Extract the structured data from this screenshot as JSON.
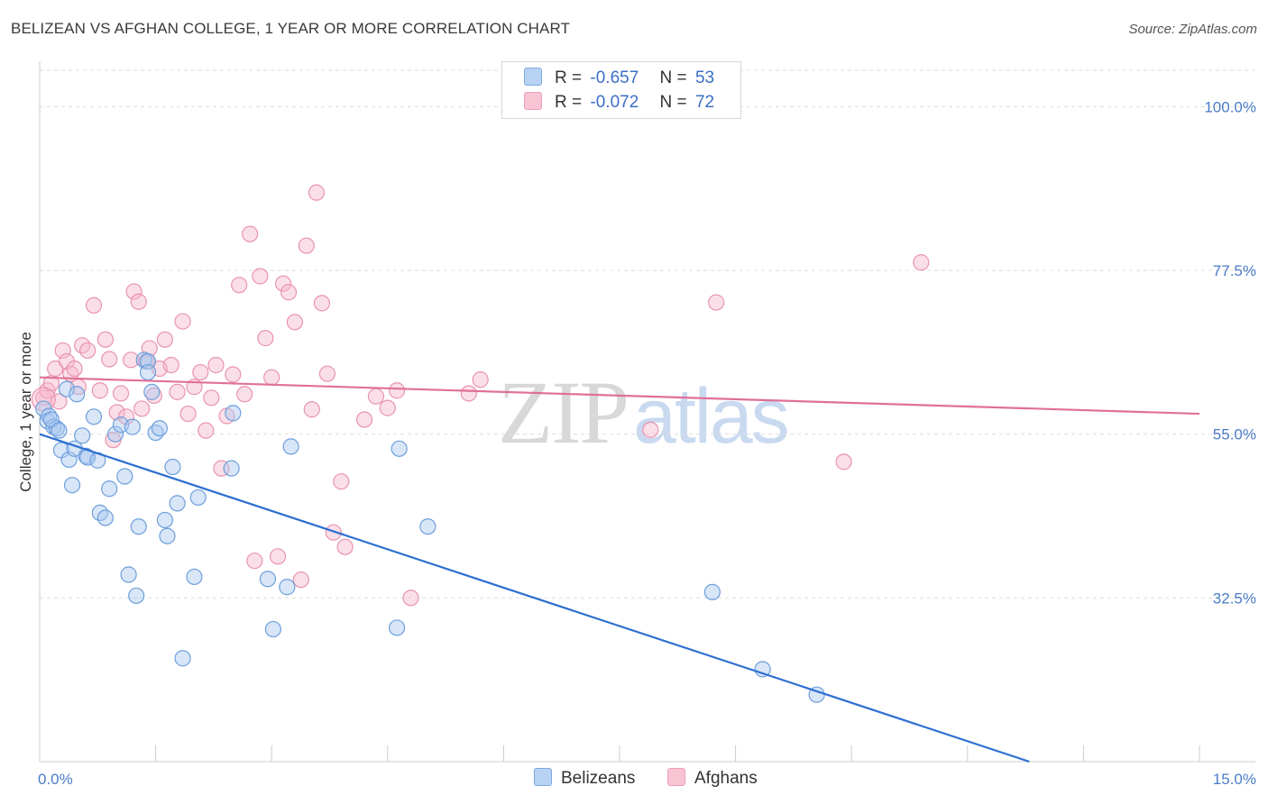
{
  "header": {
    "title": "BELIZEAN VS AFGHAN COLLEGE, 1 YEAR OR MORE CORRELATION CHART",
    "source": "Source: ZipAtlas.com"
  },
  "watermark": {
    "zip": "ZIP",
    "atlas": "atlas"
  },
  "legend_top": {
    "rows": [
      {
        "r_label": "R =",
        "r_value": "-0.657",
        "n_label": "N =",
        "n_value": "53"
      },
      {
        "r_label": "R =",
        "r_value": "-0.072",
        "n_label": "N =",
        "n_value": "72"
      }
    ]
  },
  "legend_bottom": {
    "items": [
      "Belizeans",
      "Afghans"
    ]
  },
  "colors": {
    "belizean_fill": "#a9c8f0",
    "belizean_stroke": "#6e9fdc",
    "belizean_line": "#2e6fd1",
    "afghan_fill": "#f6b8cb",
    "afghan_stroke": "#e894ad",
    "afghan_line": "#e07098",
    "grid": "#dddddd",
    "tick_text": "#4a7cc7"
  },
  "chart_data": {
    "type": "scatter",
    "title": "BELIZEAN VS AFGHAN COLLEGE, 1 YEAR OR MORE CORRELATION CHART",
    "ylabel": "College, 1 year or more",
    "xlim": [
      0,
      15
    ],
    "ylim": [
      10,
      105
    ],
    "x_tick_labels": [
      "0.0%",
      "15.0%"
    ],
    "y_ticks": [
      32.5,
      55.0,
      77.5,
      100.0
    ],
    "y_tick_labels": [
      "32.5%",
      "55.0%",
      "77.5%",
      "100.0%"
    ],
    "grid": true,
    "legend_position": "top-center",
    "series": [
      {
        "name": "Belizeans",
        "R": -0.657,
        "N": 53,
        "trend": {
          "x": [
            0.0,
            12.8
          ],
          "y": [
            55.0,
            10.0
          ]
        },
        "points": [
          [
            0.05,
            58.5
          ],
          [
            0.1,
            56.8
          ],
          [
            0.12,
            57.5
          ],
          [
            0.18,
            56.0
          ],
          [
            0.22,
            55.8
          ],
          [
            0.28,
            52.8
          ],
          [
            0.35,
            61.2
          ],
          [
            0.38,
            51.5
          ],
          [
            0.42,
            48.0
          ],
          [
            0.48,
            60.5
          ],
          [
            0.55,
            54.8
          ],
          [
            0.6,
            52.0
          ],
          [
            0.62,
            51.8
          ],
          [
            0.7,
            57.4
          ],
          [
            0.75,
            51.4
          ],
          [
            0.78,
            44.2
          ],
          [
            0.85,
            43.5
          ],
          [
            0.9,
            47.5
          ],
          [
            0.98,
            55.0
          ],
          [
            1.05,
            56.3
          ],
          [
            1.1,
            49.2
          ],
          [
            1.15,
            35.7
          ],
          [
            1.2,
            56.0
          ],
          [
            1.25,
            32.8
          ],
          [
            1.28,
            42.3
          ],
          [
            1.35,
            65.2
          ],
          [
            1.4,
            65.0
          ],
          [
            1.45,
            60.8
          ],
          [
            1.5,
            55.2
          ],
          [
            1.55,
            55.8
          ],
          [
            1.62,
            43.2
          ],
          [
            1.65,
            41.0
          ],
          [
            1.72,
            50.5
          ],
          [
            1.78,
            45.5
          ],
          [
            1.85,
            24.2
          ],
          [
            2.0,
            35.4
          ],
          [
            2.05,
            46.3
          ],
          [
            2.48,
            50.3
          ],
          [
            2.5,
            57.9
          ],
          [
            2.95,
            35.1
          ],
          [
            3.02,
            28.2
          ],
          [
            3.2,
            34.0
          ],
          [
            3.25,
            53.3
          ],
          [
            4.62,
            28.4
          ],
          [
            4.65,
            53.0
          ],
          [
            5.02,
            42.3
          ],
          [
            8.7,
            33.3
          ],
          [
            9.35,
            22.7
          ],
          [
            10.05,
            19.2
          ],
          [
            0.15,
            57.0
          ],
          [
            0.25,
            55.5
          ],
          [
            1.4,
            63.5
          ],
          [
            0.45,
            53.0
          ]
        ]
      },
      {
        "name": "Afghans",
        "R": -0.072,
        "N": 72,
        "trend": {
          "x": [
            0.0,
            15.0
          ],
          "y": [
            62.8,
            57.8
          ]
        },
        "points": [
          [
            0.05,
            60.0
          ],
          [
            0.1,
            61.0
          ],
          [
            0.15,
            62.0
          ],
          [
            0.2,
            64.0
          ],
          [
            0.25,
            59.5
          ],
          [
            0.3,
            66.5
          ],
          [
            0.35,
            65.0
          ],
          [
            0.4,
            63.3
          ],
          [
            0.45,
            64.0
          ],
          [
            0.5,
            61.5
          ],
          [
            0.55,
            67.2
          ],
          [
            0.62,
            66.5
          ],
          [
            0.7,
            72.7
          ],
          [
            0.78,
            61.0
          ],
          [
            0.85,
            68.0
          ],
          [
            0.9,
            65.3
          ],
          [
            0.95,
            54.2
          ],
          [
            1.0,
            58.0
          ],
          [
            1.05,
            60.6
          ],
          [
            1.12,
            57.4
          ],
          [
            1.18,
            65.2
          ],
          [
            1.22,
            74.6
          ],
          [
            1.28,
            73.2
          ],
          [
            1.32,
            58.5
          ],
          [
            1.38,
            65.0
          ],
          [
            1.42,
            66.8
          ],
          [
            1.48,
            60.3
          ],
          [
            1.55,
            64.0
          ],
          [
            1.62,
            68.0
          ],
          [
            1.7,
            64.5
          ],
          [
            1.78,
            60.8
          ],
          [
            1.85,
            70.5
          ],
          [
            1.92,
            57.8
          ],
          [
            2.0,
            61.5
          ],
          [
            2.08,
            63.5
          ],
          [
            2.15,
            55.5
          ],
          [
            2.22,
            60.0
          ],
          [
            2.28,
            64.5
          ],
          [
            2.35,
            50.3
          ],
          [
            2.42,
            57.5
          ],
          [
            2.5,
            63.2
          ],
          [
            2.58,
            75.5
          ],
          [
            2.65,
            60.5
          ],
          [
            2.72,
            82.5
          ],
          [
            2.78,
            37.6
          ],
          [
            2.85,
            76.7
          ],
          [
            2.92,
            68.2
          ],
          [
            3.0,
            62.8
          ],
          [
            3.08,
            38.2
          ],
          [
            3.15,
            75.7
          ],
          [
            3.22,
            74.5
          ],
          [
            3.3,
            70.4
          ],
          [
            3.38,
            35.0
          ],
          [
            3.45,
            80.9
          ],
          [
            3.52,
            58.4
          ],
          [
            3.58,
            88.2
          ],
          [
            3.65,
            73.0
          ],
          [
            3.72,
            63.3
          ],
          [
            3.8,
            41.5
          ],
          [
            3.9,
            48.5
          ],
          [
            3.95,
            39.5
          ],
          [
            4.2,
            57.0
          ],
          [
            4.35,
            60.2
          ],
          [
            4.5,
            58.6
          ],
          [
            4.62,
            61.0
          ],
          [
            4.8,
            32.5
          ],
          [
            5.55,
            60.6
          ],
          [
            5.7,
            62.5
          ],
          [
            7.9,
            55.6
          ],
          [
            8.75,
            73.1
          ],
          [
            10.4,
            51.2
          ],
          [
            11.4,
            78.6
          ]
        ]
      }
    ]
  }
}
